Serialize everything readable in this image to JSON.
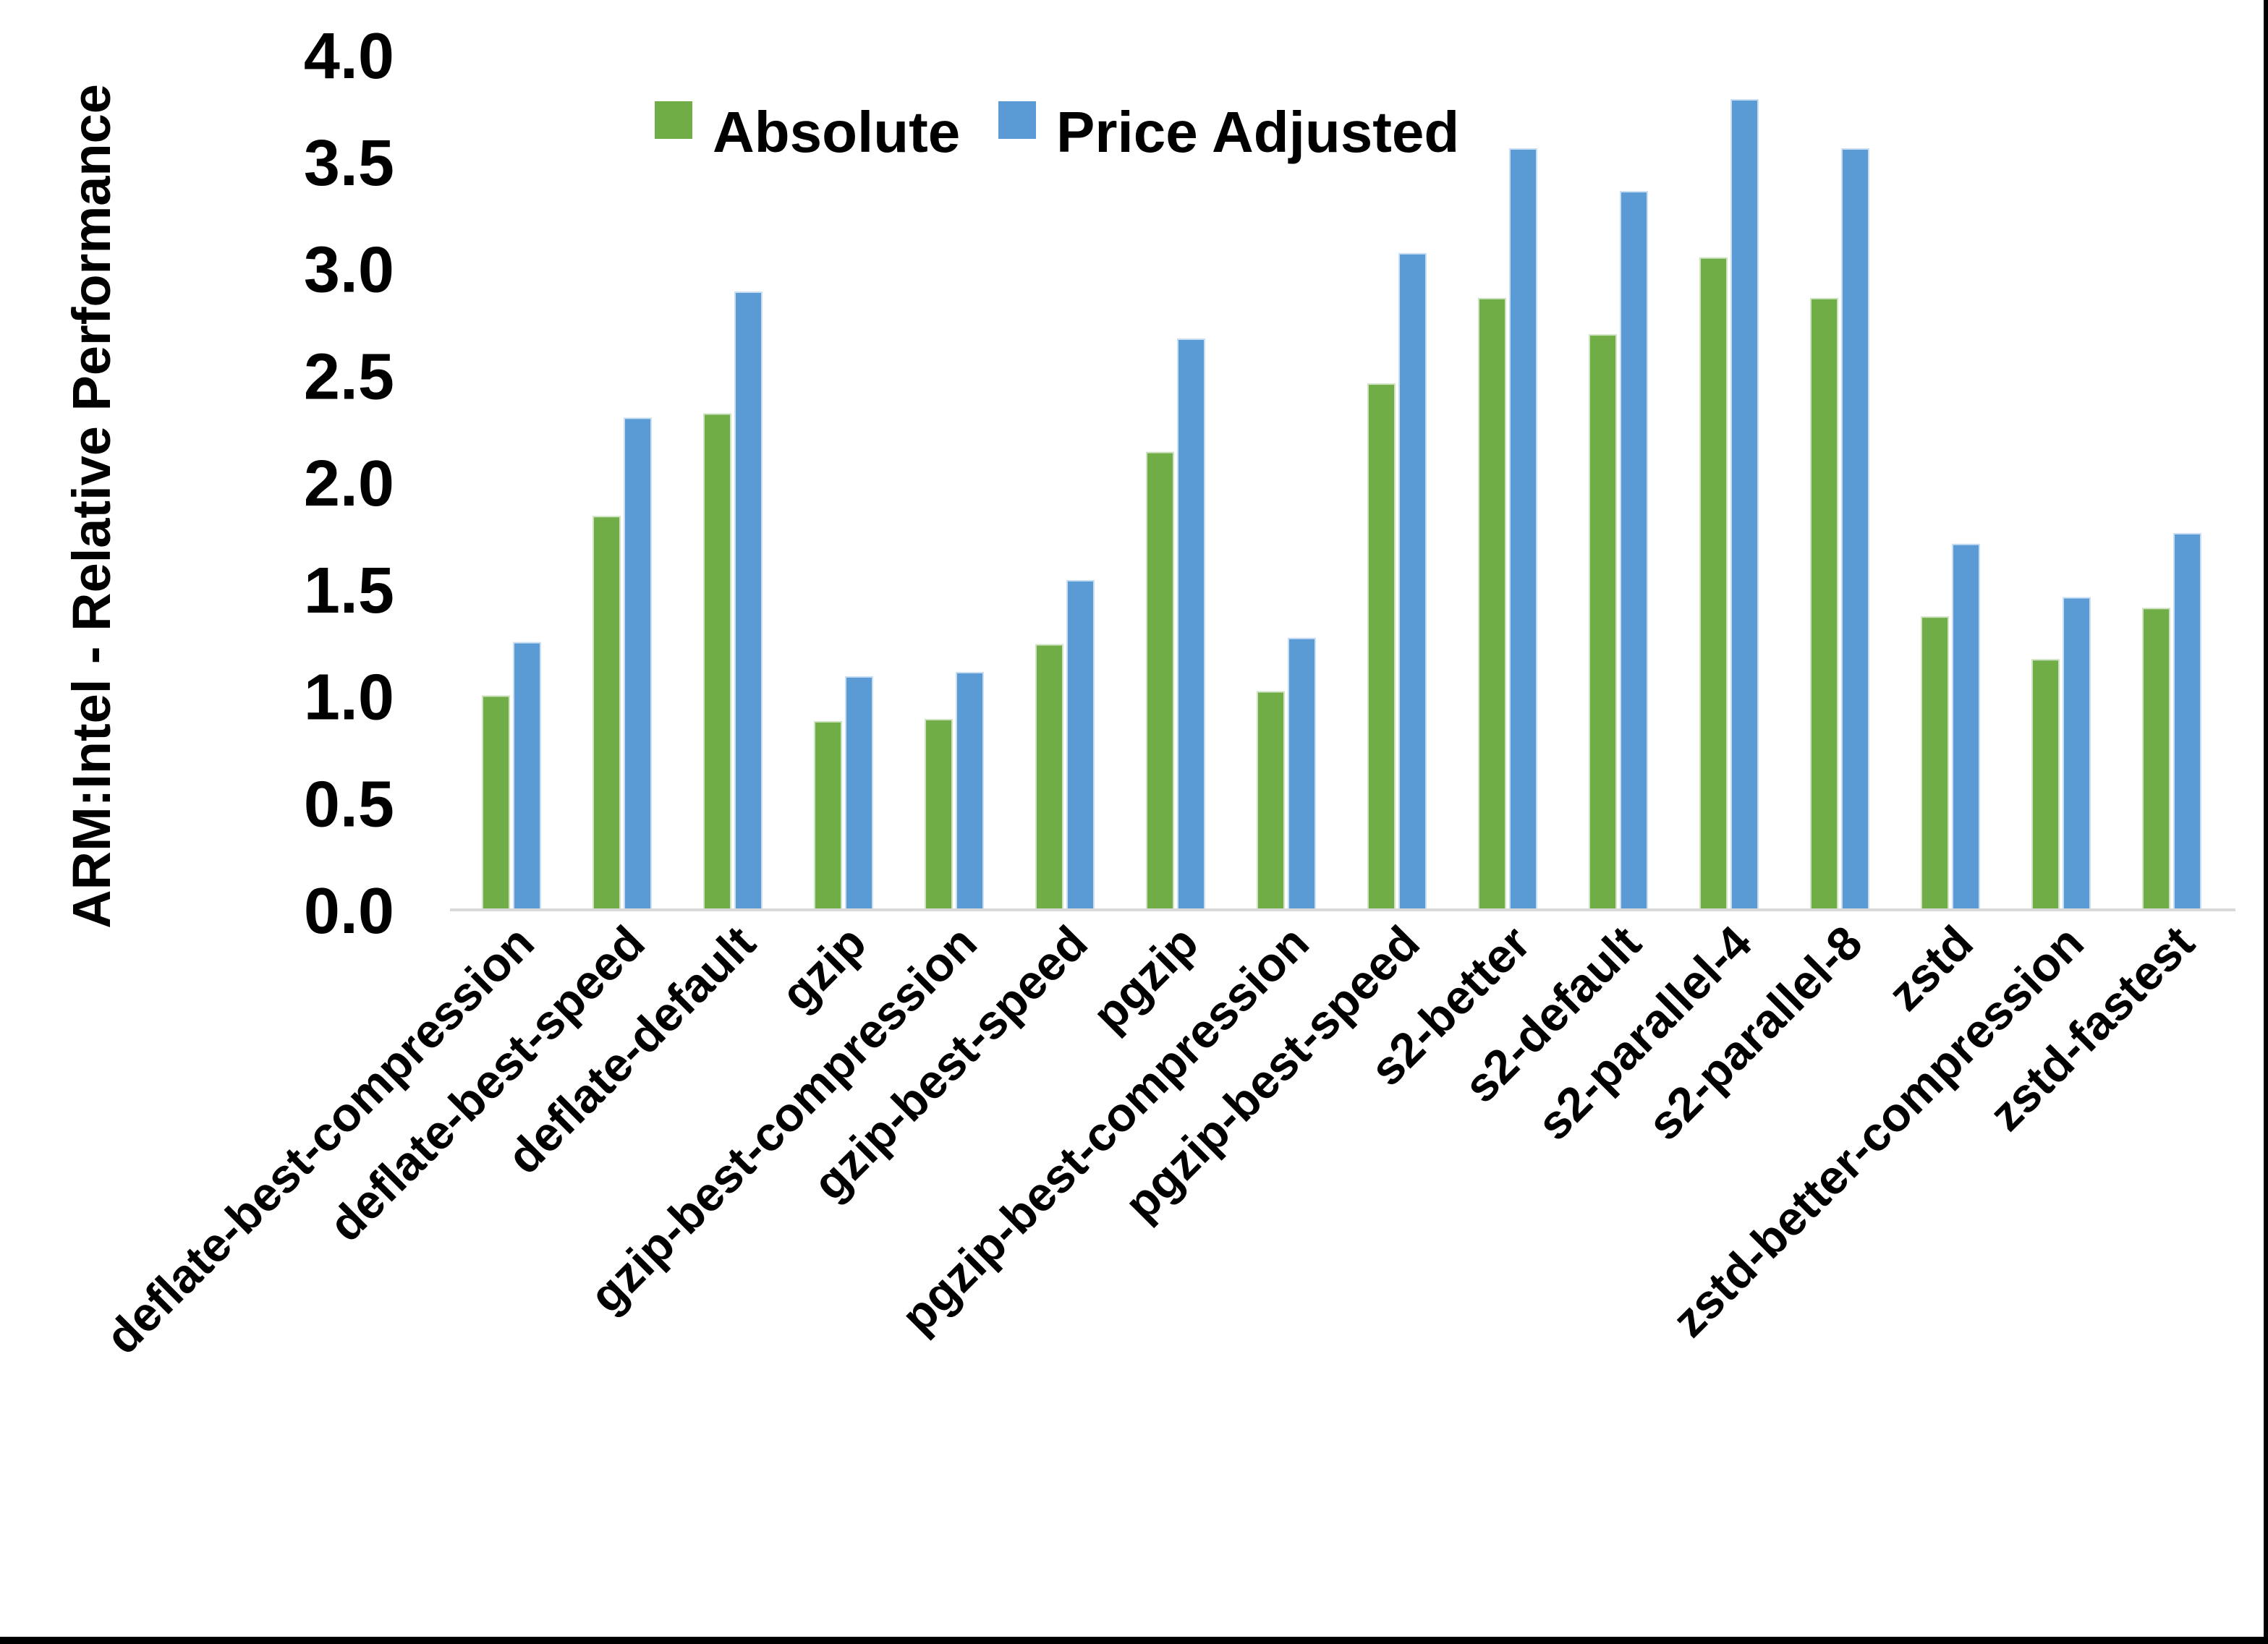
{
  "chart_data": {
    "type": "bar",
    "title": "",
    "xlabel": "",
    "ylabel": "ARM:Intel - Relative Performance",
    "ylim": [
      0.0,
      4.0
    ],
    "y_tick_step": 0.5,
    "y_ticks": [
      "0.0",
      "0.5",
      "1.0",
      "1.5",
      "2.0",
      "2.5",
      "3.0",
      "3.5",
      "4.0"
    ],
    "grid": false,
    "legend_position": "top-center",
    "categories": [
      "deflate-best-compression",
      "deflate-best-speed",
      "deflate-default",
      "gzip",
      "gzip-best-compression",
      "gzip-best-speed",
      "pgzip",
      "pgzip-best-compression",
      "pgzip-best-speed",
      "s2-better",
      "s2-default",
      "s2-parallel-4",
      "s2-parallel-8",
      "zstd",
      "zstd-better-compression",
      "zstd-fastest"
    ],
    "series": [
      {
        "name": "Absolute",
        "color": "#70AD47",
        "edge_color": "#cfe3c2",
        "values": [
          1.0,
          1.84,
          2.32,
          0.88,
          0.89,
          1.24,
          2.14,
          1.02,
          2.46,
          2.86,
          2.69,
          3.05,
          2.86,
          1.37,
          1.17,
          1.41
        ]
      },
      {
        "name": "Price Adjusted",
        "color": "#5B9BD5",
        "edge_color": "#c9def2",
        "values": [
          1.25,
          2.3,
          2.89,
          1.09,
          1.11,
          1.54,
          2.67,
          1.27,
          3.07,
          3.56,
          3.36,
          3.79,
          3.56,
          1.71,
          1.46,
          1.76
        ]
      }
    ]
  },
  "colors": {
    "background": "#FFFFFF",
    "axis_line": "#D9D9D9",
    "text": "#000000",
    "frame": "#000000"
  }
}
